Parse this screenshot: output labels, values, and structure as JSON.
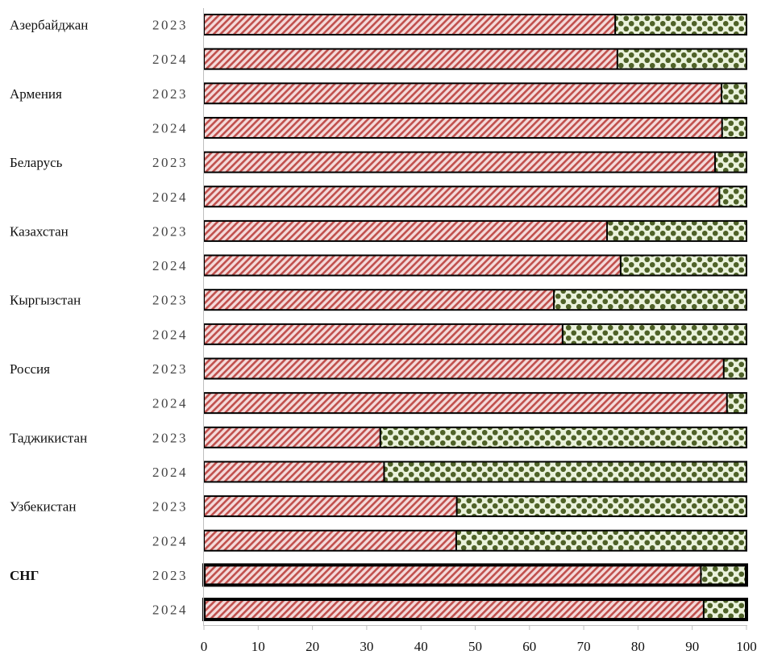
{
  "chart_data": {
    "type": "bar",
    "orientation": "horizontal",
    "stacked": true,
    "xlim": [
      0,
      100
    ],
    "xticks": [
      0,
      10,
      20,
      30,
      40,
      50,
      60,
      70,
      80,
      90,
      100
    ],
    "grid": false,
    "legend": "none",
    "colors": {
      "series1": "#c0504d",
      "series2": "#4f6228",
      "series2_bg": "#eaf2dc"
    },
    "groups": [
      {
        "country": "Азербайджан",
        "bold": false,
        "rows": [
          {
            "year": "2023",
            "values": [
              75.8,
              24.2
            ]
          },
          {
            "year": "2024",
            "values": [
              76.2,
              23.8
            ]
          }
        ]
      },
      {
        "country": "Армения",
        "bold": false,
        "rows": [
          {
            "year": "2023",
            "values": [
              95.4,
              4.6
            ]
          },
          {
            "year": "2024",
            "values": [
              95.5,
              4.5
            ]
          }
        ]
      },
      {
        "country": "Беларусь",
        "bold": false,
        "rows": [
          {
            "year": "2023",
            "values": [
              94.2,
              5.8
            ]
          },
          {
            "year": "2024",
            "values": [
              95.0,
              5.0
            ]
          }
        ]
      },
      {
        "country": "Казахстан",
        "bold": false,
        "rows": [
          {
            "year": "2023",
            "values": [
              74.3,
              25.7
            ]
          },
          {
            "year": "2024",
            "values": [
              76.8,
              23.2
            ]
          }
        ]
      },
      {
        "country": "Кыргызстан",
        "bold": false,
        "rows": [
          {
            "year": "2023",
            "values": [
              64.5,
              35.5
            ]
          },
          {
            "year": "2024",
            "values": [
              66.1,
              33.9
            ]
          }
        ]
      },
      {
        "country": "Россия",
        "bold": false,
        "rows": [
          {
            "year": "2023",
            "values": [
              95.8,
              4.2
            ]
          },
          {
            "year": "2024",
            "values": [
              96.4,
              3.6
            ]
          }
        ]
      },
      {
        "country": "Таджикистан",
        "bold": false,
        "rows": [
          {
            "year": "2023",
            "values": [
              32.5,
              67.5
            ]
          },
          {
            "year": "2024",
            "values": [
              33.2,
              66.8
            ]
          }
        ]
      },
      {
        "country": "Узбекистан",
        "bold": false,
        "rows": [
          {
            "year": "2023",
            "values": [
              46.6,
              53.4
            ]
          },
          {
            "year": "2024",
            "values": [
              46.5,
              53.5
            ]
          }
        ]
      },
      {
        "country": "СНГ",
        "bold": true,
        "rows": [
          {
            "year": "2023",
            "values": [
              91.6,
              8.4
            ]
          },
          {
            "year": "2024",
            "values": [
              92.1,
              7.9
            ]
          }
        ]
      }
    ]
  }
}
